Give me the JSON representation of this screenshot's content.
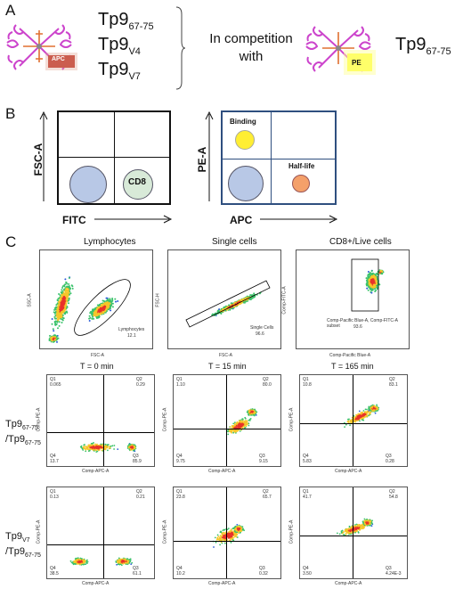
{
  "panelA": {
    "letter": "A",
    "peptides_left": [
      {
        "base": "Tp9",
        "sub": "67-75"
      },
      {
        "base": "Tp9",
        "sub": "V4"
      },
      {
        "base": "Tp9",
        "sub": "V7"
      }
    ],
    "competition_text_line1": "In competition",
    "competition_text_line2": "with",
    "peptide_right": {
      "base": "Tp9",
      "sub": "67-75"
    },
    "left_tag": "APC",
    "right_tag": "PE",
    "colors": {
      "tetramer": "#cc44cc",
      "apc": "#c0392b",
      "pe": "#ffff33"
    }
  },
  "panelB": {
    "letter": "B",
    "left": {
      "ylabel": "FSC-A",
      "xlabel": "FITC",
      "cell_label": "CD8"
    },
    "right": {
      "ylabel": "PE-A",
      "xlabel": "APC",
      "binding_label": "Binding",
      "halflife_label": "Half-life"
    },
    "colors": {
      "cell": "#b8c8e6",
      "cd8": "#d8ead8",
      "binding": "#ffee33",
      "halflife": "#f4a06a",
      "right_frame": "#2f4f7f"
    }
  },
  "panelC": {
    "letter": "C",
    "gating": [
      {
        "title": "Lymphocytes",
        "ylabel": "SSC-A",
        "xlabel": "FSC-A",
        "gate_name": "Lymphocytes",
        "gate_value": "12.1",
        "yticks": [
          "250K",
          "200K",
          "150K",
          "100K",
          "50K",
          "0"
        ],
        "xticks": [
          "0",
          "50K",
          "100K",
          "150K",
          "200K",
          "250K"
        ]
      },
      {
        "title": "Single cells",
        "ylabel": "FSC-H",
        "xlabel": "FSC-A",
        "gate_name": "Single Cells",
        "gate_value": "96.6",
        "yticks": [
          "250K",
          "200K",
          "150K",
          "100K",
          "50K",
          "0"
        ],
        "xticks": [
          "0",
          "50K",
          "100K",
          "150K",
          "200K",
          "250K"
        ]
      },
      {
        "title": "CD8+/Live cells",
        "ylabel": "Comp-FITC-A",
        "xlabel": "Comp-Pacific Blue-A",
        "gate_name": "Comp-Pacific Blue-A, Comp-FITC-A subset",
        "gate_value": "93.6"
      }
    ],
    "times": [
      "T = 0 min",
      "T = 15 min",
      "T = 165 min"
    ],
    "rows": [
      {
        "label_line1": {
          "base": "Tp9",
          "sub": "67-75"
        },
        "label_line2": {
          "base": "/Tp9",
          "sub": "67-75"
        },
        "quads": [
          {
            "q1": "0.065",
            "q2": "0.29",
            "q3": "85.9",
            "q4": "13.7"
          },
          {
            "q1": "1.10",
            "q2": "80.0",
            "q3": "9.15",
            "q4": "9.75"
          },
          {
            "q1": "10.8",
            "q2": "83.1",
            "q3": "0.28",
            "q4": "5.83"
          }
        ]
      },
      {
        "label_line1": {
          "base": "Tp9",
          "sub": "V7"
        },
        "label_line2": {
          "base": "/Tp9",
          "sub": "67-75"
        },
        "quads": [
          {
            "q1": "0.13",
            "q2": "0.21",
            "q3": "61.1",
            "q4": "38.5"
          },
          {
            "q1": "23.8",
            "q2": "65.7",
            "q3": "0.32",
            "q4": "10.2"
          },
          {
            "q1": "41.7",
            "q2": "54.8",
            "q3": "4.24E-3",
            "q4": "3.50"
          }
        ]
      }
    ],
    "quad_axis": {
      "ylabel": "Comp-PE-A",
      "xlabel": "Comp-APC-A"
    },
    "quad_names": {
      "q1": "Q1",
      "q2": "Q2",
      "q3": "Q3",
      "q4": "Q4"
    }
  }
}
